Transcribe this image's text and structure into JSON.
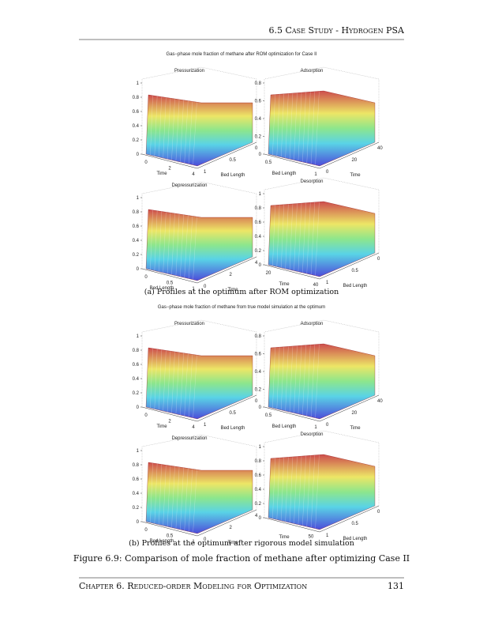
{
  "header": {
    "title": "6.5 Case Study - Hydrogen PSA"
  },
  "figures": [
    {
      "title": "Gas−phase mole fraction of methane after ROM optimization for Case II",
      "caption": "(a) Profiles at the optimum after ROM optimization",
      "plots": [
        {
          "title": "Pressurization",
          "z_ticks": [
            "0",
            "0.2",
            "0.4",
            "0.6",
            "0.8",
            "1"
          ],
          "axis1_label": "Time",
          "axis1_ticks": [
            "0",
            "2",
            "4"
          ],
          "axis2_label": "Bed Length",
          "axis2_ticks": [
            "1",
            "0.5",
            "0"
          ]
        },
        {
          "title": "Adsorption",
          "z_ticks": [
            "0",
            "0.2",
            "0.4",
            "0.6",
            "0.8"
          ],
          "axis1_label": "Bed Length",
          "axis1_ticks": [
            "0.5",
            "1"
          ],
          "axis2_label": "Time",
          "axis2_ticks": [
            "0",
            "20",
            "40"
          ]
        },
        {
          "title": "Depressurization",
          "z_ticks": [
            "0",
            "0.2",
            "0.4",
            "0.6",
            "0.8",
            "1"
          ],
          "axis1_label": "Bed Length",
          "axis1_ticks": [
            "0",
            "0.5",
            "1"
          ],
          "axis2_label": "Time",
          "axis2_ticks": [
            "0",
            "2",
            "4"
          ]
        },
        {
          "title": "Desorption",
          "z_ticks": [
            "0",
            "0.2",
            "0.4",
            "0.6",
            "0.8",
            "1"
          ],
          "axis1_label": "Time",
          "axis1_ticks": [
            "20",
            "40"
          ],
          "axis2_label": "Bed Length",
          "axis2_ticks": [
            "1",
            "0.5",
            "0"
          ]
        }
      ]
    },
    {
      "title": "Gas−phase mole fraction of methane from true model simulation at the optimum",
      "caption": "(b) Profiles at the optimum after rigorous model simulation",
      "plots": [
        {
          "title": "Pressurization",
          "z_ticks": [
            "0",
            "0.2",
            "0.4",
            "0.6",
            "0.8",
            "1"
          ],
          "axis1_label": "Time",
          "axis1_ticks": [
            "0",
            "2",
            "4"
          ],
          "axis2_label": "Bed Length",
          "axis2_ticks": [
            "1",
            "0.5",
            "0"
          ]
        },
        {
          "title": "Adsorption",
          "z_ticks": [
            "0",
            "0.2",
            "0.4",
            "0.6",
            "0.8"
          ],
          "axis1_label": "Bed Length",
          "axis1_ticks": [
            "0.5",
            "1"
          ],
          "axis2_label": "Time",
          "axis2_ticks": [
            "0",
            "20",
            "40"
          ]
        },
        {
          "title": "Depressurization",
          "z_ticks": [
            "0",
            "0.2",
            "0.4",
            "0.6",
            "0.8",
            "1"
          ],
          "axis1_label": "Bed Length",
          "axis1_ticks": [
            "0",
            "0.5",
            "1"
          ],
          "axis2_label": "Time",
          "axis2_ticks": [
            "0",
            "2",
            "4"
          ]
        },
        {
          "title": "Desorption",
          "z_ticks": [
            "0",
            "0.2",
            "0.4",
            "0.6",
            "0.8",
            "1"
          ],
          "axis1_label": "Time",
          "axis1_ticks": [
            "50"
          ],
          "axis2_label": "Bed Length",
          "axis2_ticks": [
            "1",
            "0.5",
            "0"
          ]
        }
      ]
    }
  ],
  "figure_caption": "Figure 6.9: Comparison of mole fraction of methane after optimizing Case II",
  "footer": {
    "chapter": "Chapter 6. Reduced-order Modeling for Optimization",
    "page": "131"
  }
}
